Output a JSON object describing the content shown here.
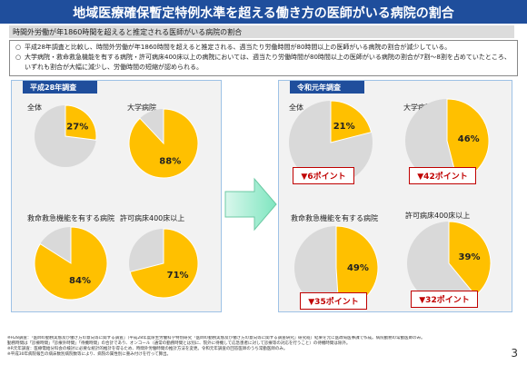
{
  "title": "地域医療確保暫定特例水準を超える働き方の医師がいる病院の割合",
  "subtitle": "時間外労働が年1860時間を超えると推定される医師がいる病院の割合",
  "summary": [
    "平成28年調査と比較し、時間外労働が年1860時間を超えると推定される、週当たり労働時間が80時間以上の医師がいる病院の割合が減少している。",
    "大学病院・救命救急機能を有する病院・許可病床400床以上の病院においては、週当たり労働時間が80時間以上の医師がいる病院の割合が7割～8割を占めていたところ、いずれも割合が大幅に減少し、労働時間の短縮が認められる。"
  ],
  "panels": {
    "left_title": "平成28年調査",
    "right_title": "令和元年調査"
  },
  "colors": {
    "accent": "#ffc000",
    "remain": "#d9d9d9",
    "header": "#1f4e9c",
    "arrow": "#7fe6c0"
  },
  "chart_data": [
    {
      "type": "pie",
      "survey": "平成28年調査",
      "title": "全体",
      "value": 27,
      "label": "27%"
    },
    {
      "type": "pie",
      "survey": "平成28年調査",
      "title": "大学病院",
      "value": 88,
      "label": "88%"
    },
    {
      "type": "pie",
      "survey": "平成28年調査",
      "title": "救命救急機能を有する病院",
      "value": 84,
      "label": "84%"
    },
    {
      "type": "pie",
      "survey": "平成28年調査",
      "title": "許可病床400床以上",
      "value": 71,
      "label": "71%"
    },
    {
      "type": "pie",
      "survey": "令和元年調査",
      "title": "全体",
      "value": 21,
      "label": "21%",
      "change": "▼6ポイント"
    },
    {
      "type": "pie",
      "survey": "令和元年調査",
      "title": "大学病院",
      "value": 46,
      "label": "46%",
      "change": "▼42ポイント"
    },
    {
      "type": "pie",
      "survey": "令和元年調査",
      "title": "救命救急機能を有する病院",
      "value": 49,
      "label": "49%",
      "change": "▼35ポイント"
    },
    {
      "type": "pie",
      "survey": "令和元年調査",
      "title": "許可病床400床以上",
      "value": 39,
      "label": "39%",
      "change": "▼32ポイント"
    }
  ],
  "footnotes": [
    "※H28調査：「医師の勤務実態及び働き方の意向等に関する調査」（平成28年度厚生労働科学特別研究「医師の勤務実態及び働き方の意向等に関する調査研究」研究班）結果を元に医政局医事課で作成。病院勤務の常勤医師のみ。",
    "勤務時間は「診療時間」「診療外時間」「待機時間」の合計であり、オンコール（通常の勤務時間とは別に、院外に待機して応急患者に対して診療等の対応を行うこと）の待機時間は除外。",
    "※R元年調査：医療需給分科会の検討に必要な統計的推計を得るため、時間外労働時間の推計方法を変更。令和元年調査の回答医師のうち常勤医師のみ。",
    "※平成30年病院報告の病床数別病院数等により、病院の属性別に重み付けを行って算出。"
  ],
  "page_number": "3"
}
